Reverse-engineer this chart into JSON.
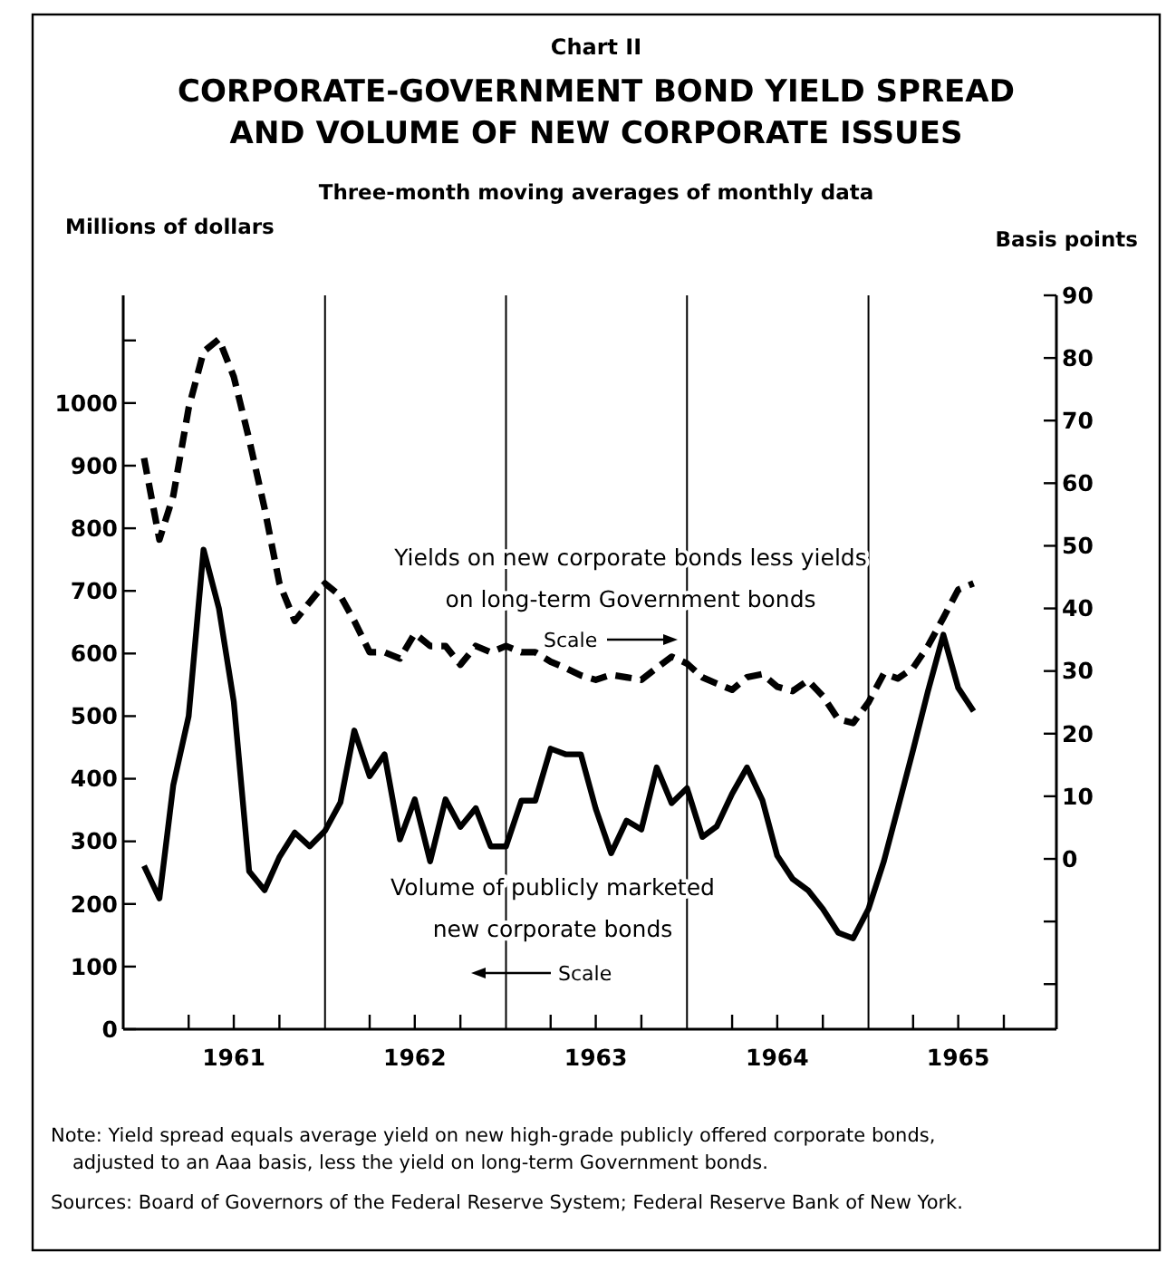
{
  "chart_data": {
    "type": "line",
    "title": "Chart II\nCORPORATE-GOVERNMENT BOND YIELD SPREAD\nAND VOLUME OF NEW CORPORATE ISSUES",
    "subtitle": "Three-month moving averages of monthly data",
    "ylabel": "Millions of dollars",
    "y2label": "Basis points",
    "x": [
      "1961-01",
      "1961-02",
      "1961-03",
      "1961-04",
      "1961-05",
      "1961-06",
      "1961-07",
      "1961-08",
      "1961-09",
      "1961-10",
      "1961-11",
      "1961-12",
      "1962-01",
      "1962-02",
      "1962-03",
      "1962-04",
      "1962-05",
      "1962-06",
      "1962-07",
      "1962-08",
      "1962-09",
      "1962-10",
      "1962-11",
      "1962-12",
      "1963-01",
      "1963-02",
      "1963-03",
      "1963-04",
      "1963-05",
      "1963-06",
      "1963-07",
      "1963-08",
      "1963-09",
      "1963-10",
      "1963-11",
      "1963-12",
      "1964-01",
      "1964-02",
      "1964-03",
      "1964-04",
      "1964-05",
      "1964-06",
      "1964-07",
      "1964-08",
      "1964-09",
      "1964-10",
      "1964-11",
      "1964-12",
      "1965-01",
      "1965-02",
      "1965-03",
      "1965-04",
      "1965-05",
      "1965-06",
      "1965-07",
      "1965-08"
    ],
    "series": [
      {
        "name": "Yields on new corporate bonds less yields on long-term Government bonds",
        "color": "#000000",
        "axis": "y2",
        "line_style": "dashed",
        "values": [
          64,
          51,
          58,
          72,
          81,
          83,
          77,
          67,
          56,
          44,
          38,
          41,
          44,
          42,
          38,
          33,
          33,
          32,
          36,
          34,
          34,
          31,
          34,
          33,
          34,
          33,
          33,
          31.5,
          30.5,
          29.3,
          28.6,
          29.4,
          29,
          28.6,
          30.5,
          32.3,
          31.2,
          29,
          28,
          27,
          29,
          29.5,
          27.5,
          26.8,
          28.5,
          26,
          22.3,
          21.7,
          25,
          29.6,
          28.8,
          30.5,
          34,
          38.5,
          43,
          44
        ]
      },
      {
        "name": "Volume of publicly marketed new corporate bonds",
        "color": "#000000",
        "line_style": "solid",
        "values": [
          261,
          209,
          390,
          500,
          766,
          672,
          523,
          252,
          222,
          275,
          314,
          292,
          317,
          362,
          477,
          404,
          439,
          303,
          367,
          268,
          367,
          323,
          353,
          292,
          292,
          365,
          365,
          448,
          439,
          439,
          352,
          281,
          333,
          319,
          418,
          361,
          385,
          307,
          324,
          376,
          418,
          366,
          277,
          240,
          222,
          192,
          154,
          145,
          192,
          268,
          352,
          446,
          540,
          630,
          545,
          508
        ]
      }
    ],
    "xlim": [
      "1960-11-20",
      "1966-01-15"
    ],
    "xticks": [
      {
        "value": "1961-04-01",
        "label": null
      },
      {
        "value": "1961-07-01",
        "label": "1961"
      },
      {
        "value": "1961-10-01",
        "label": null
      },
      {
        "value": "1962-04-01",
        "label": null
      },
      {
        "value": "1962-07-01",
        "label": "1962"
      },
      {
        "value": "1962-10-01",
        "label": null
      },
      {
        "value": "1963-04-01",
        "label": null
      },
      {
        "value": "1963-07-01",
        "label": "1963"
      },
      {
        "value": "1963-10-01",
        "label": null
      },
      {
        "value": "1964-04-01",
        "label": null
      },
      {
        "value": "1964-07-01",
        "label": "1964"
      },
      {
        "value": "1964-10-01",
        "label": null
      },
      {
        "value": "1965-04-01",
        "label": null
      },
      {
        "value": "1965-07-01",
        "label": "1965"
      },
      {
        "value": "1965-10-01",
        "label": null
      }
    ],
    "ylim": [
      0,
      1172
    ],
    "yticks": [
      0,
      100,
      200,
      300,
      400,
      500,
      600,
      700,
      800,
      900,
      1000,
      {
        "value": 1100,
        "label": null
      }
    ],
    "y2lim": [
      -27.2,
      90
    ],
    "y2ticks": [
      {
        "value": -20,
        "label": null
      },
      {
        "value": -10,
        "label": null
      },
      0,
      10,
      20,
      30,
      40,
      50,
      60,
      70,
      80,
      90
    ],
    "ref_lines": [
      {
        "axis": "x",
        "value": "1962-01-01",
        "label": null
      },
      {
        "axis": "x",
        "value": "1963-01-01",
        "label": null
      },
      {
        "axis": "x",
        "value": "1964-01-01",
        "label": null
      },
      {
        "axis": "x",
        "value": "1965-01-01",
        "label": null
      }
    ],
    "grid": false,
    "annotations": [
      "Scale",
      "Scale",
      "Note: Yield spread equals average yield on new high-grade publicly offered corporate bonds, adjusted to an Aaa basis, less the yield on long-term Government bonds.",
      "Sources: Board of Governors of the Federal Reserve System; Federal Reserve Bank of New York."
    ]
  }
}
